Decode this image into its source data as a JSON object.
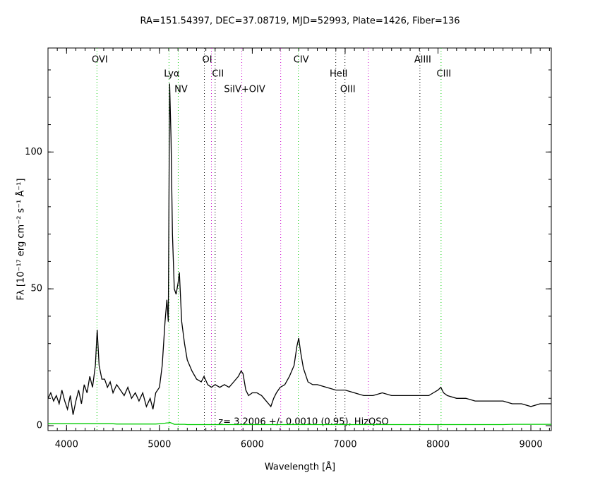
{
  "chart_data": {
    "type": "line",
    "title": "RA=151.54397, DEC=37.08719, MJD=52993, Plate=1426, Fiber=136",
    "x_label": "Wavelength [Å]",
    "y_label": "Fλ [10⁻¹⁷ erg cm⁻² s⁻¹ Å⁻¹]",
    "annotation": "z=  3.2006 +/- 0.0010 (0.95), HizQSO",
    "xlim": [
      3800,
      9220
    ],
    "ylim": [
      -1.8,
      138
    ],
    "xticks": [
      4000,
      5000,
      6000,
      7000,
      8000,
      9000
    ],
    "yticks": [
      0,
      50,
      100
    ],
    "x": [
      3800,
      3830,
      3860,
      3890,
      3920,
      3950,
      3980,
      4010,
      4040,
      4070,
      4100,
      4130,
      4160,
      4190,
      4220,
      4250,
      4280,
      4310,
      4330,
      4350,
      4380,
      4410,
      4440,
      4470,
      4500,
      4540,
      4580,
      4620,
      4660,
      4700,
      4740,
      4780,
      4820,
      4860,
      4900,
      4930,
      4960,
      5000,
      5030,
      5060,
      5080,
      5095,
      5110,
      5125,
      5140,
      5160,
      5180,
      5200,
      5215,
      5240,
      5270,
      5300,
      5350,
      5400,
      5450,
      5480,
      5520,
      5560,
      5600,
      5650,
      5700,
      5750,
      5800,
      5850,
      5880,
      5900,
      5930,
      5960,
      6000,
      6050,
      6100,
      6150,
      6200,
      6230,
      6260,
      6300,
      6350,
      6400,
      6450,
      6480,
      6500,
      6520,
      6550,
      6600,
      6650,
      6700,
      6800,
      6900,
      7000,
      7100,
      7200,
      7300,
      7400,
      7500,
      7600,
      7700,
      7800,
      7900,
      7950,
      8000,
      8030,
      8060,
      8100,
      8200,
      8300,
      8400,
      8500,
      8600,
      8700,
      8800,
      8900,
      9000,
      9100,
      9220
    ],
    "series": [
      {
        "color": "#000000",
        "values": [
          10,
          12,
          9,
          11,
          8,
          13,
          9,
          6,
          11,
          4,
          9,
          13,
          8,
          15,
          12,
          18,
          14,
          22,
          35,
          22,
          17,
          17,
          14,
          16,
          12,
          15,
          13,
          11,
          14,
          10,
          12,
          9,
          12,
          7,
          10,
          6,
          12,
          14,
          22,
          38,
          46,
          38,
          125,
          105,
          70,
          50,
          48,
          52,
          56,
          38,
          30,
          24,
          20,
          17,
          16,
          18,
          15,
          14,
          15,
          14,
          15,
          14,
          16,
          18,
          20,
          19,
          13,
          11,
          12,
          12,
          11,
          9,
          7,
          10,
          12,
          14,
          15,
          18,
          22,
          29,
          32,
          27,
          21,
          16,
          15,
          15,
          14,
          13,
          13,
          12,
          11,
          11,
          12,
          11,
          11,
          11,
          11,
          11,
          12,
          13,
          14,
          12,
          11,
          10,
          10,
          9,
          9,
          9,
          9,
          8,
          8,
          7,
          8,
          8
        ]
      },
      {
        "color": "#00cc00",
        "values": [
          0.7,
          0.7,
          0.7,
          0.7,
          0.7,
          0.7,
          0.7,
          0.7,
          0.7,
          0.7,
          0.7,
          0.7,
          0.7,
          0.7,
          0.7,
          0.7,
          0.7,
          0.7,
          0.7,
          0.7,
          0.7,
          0.7,
          0.7,
          0.7,
          0.7,
          0.6,
          0.6,
          0.6,
          0.6,
          0.6,
          0.6,
          0.6,
          0.6,
          0.6,
          0.6,
          0.6,
          0.6,
          0.7,
          0.8,
          0.9,
          1,
          1,
          1.2,
          1,
          0.8,
          0.5,
          0.5,
          0.5,
          0.5,
          0.5,
          0.5,
          0.4,
          0.4,
          0.4,
          0.4,
          0.4,
          0.4,
          0.4,
          0.4,
          0.4,
          0.4,
          0.4,
          0.4,
          0.4,
          0.4,
          0.4,
          0.4,
          0.4,
          0.4,
          0.4,
          0.4,
          0.4,
          0.4,
          0.4,
          0.4,
          0.4,
          0.4,
          0.4,
          0.4,
          0.4,
          0.4,
          0.4,
          0.4,
          0.4,
          0.4,
          0.4,
          0.4,
          0.4,
          0.4,
          0.4,
          0.4,
          0.4,
          0.4,
          0.4,
          0.4,
          0.4,
          0.4,
          0.4,
          0.4,
          0.4,
          0.4,
          0.4,
          0.4,
          0.4,
          0.4,
          0.4,
          0.4,
          0.4,
          0.4,
          0.5,
          0.5,
          0.5,
          0.5,
          0.5
        ]
      }
    ],
    "lines": [
      {
        "wavelength": 4327,
        "label": "OVI",
        "color": "#00cc00"
      },
      {
        "wavelength": 5103,
        "label": "Lyα",
        "color": "#00cc00"
      },
      {
        "wavelength": 5202,
        "label": "NV",
        "color": "#00cc00"
      },
      {
        "wavelength": 5484,
        "label": "OI",
        "color": "#000000"
      },
      {
        "wavelength": 5560,
        "label": null,
        "color": "#cc00cc"
      },
      {
        "wavelength": 5600,
        "label": "CII",
        "color": "#000000"
      },
      {
        "wavelength": 5887,
        "label": "SiIV+OIV",
        "color": "#cc00cc"
      },
      {
        "wavelength": 6306,
        "label": null,
        "color": "#cc00cc"
      },
      {
        "wavelength": 6496,
        "label": "CIV",
        "color": "#00cc00"
      },
      {
        "wavelength": 6899,
        "label": "HeII",
        "color": "#000000"
      },
      {
        "wavelength": 6998,
        "label": "OIII",
        "color": "#000000"
      },
      {
        "wavelength": 7250,
        "label": null,
        "color": "#cc00cc"
      },
      {
        "wavelength": 7805,
        "label": "AlIII",
        "color": "#000000"
      },
      {
        "wavelength": 8033,
        "label": "CIII",
        "color": "#00cc00"
      }
    ]
  }
}
